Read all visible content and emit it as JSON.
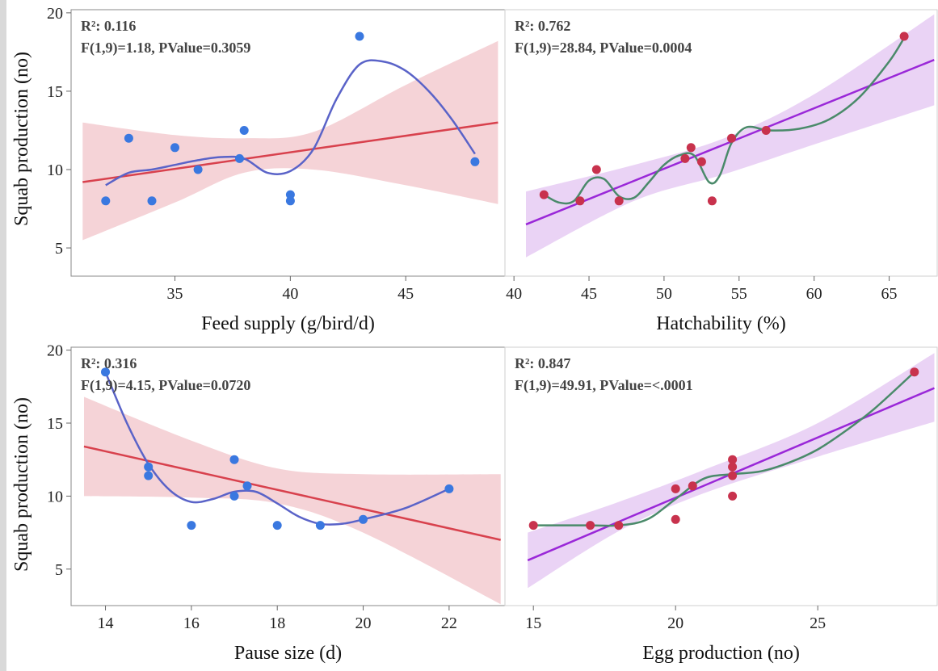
{
  "chart_data": [
    {
      "type": "scatter",
      "title": "",
      "xlabel": "Feed supply (g/bird/d)",
      "ylabel": "Squab production (no)",
      "xlim": [
        30.5,
        49.3
      ],
      "ylim": [
        3.2,
        20.2
      ],
      "x_ticks": [
        35,
        40,
        45
      ],
      "y_ticks": [
        5,
        10,
        15,
        20
      ],
      "stats": [
        "R²: 0.116",
        "F(1,9)=1.18, PValue=0.3059"
      ],
      "point_color": "#3a78e0",
      "fit_color": "#d8414d",
      "band_color": "#f2c4c9",
      "smooth_color": "#5a63c8",
      "points": [
        [
          32,
          8
        ],
        [
          33,
          12
        ],
        [
          34,
          8
        ],
        [
          35,
          11.4
        ],
        [
          36,
          10
        ],
        [
          37.8,
          10.7
        ],
        [
          38,
          12.5
        ],
        [
          40,
          8.4
        ],
        [
          40,
          8
        ],
        [
          43,
          18.5
        ],
        [
          48,
          10.5
        ]
      ],
      "fit_line": [
        [
          31,
          9.2
        ],
        [
          49,
          13.0
        ]
      ],
      "band_upper": [
        [
          31,
          13.0
        ],
        [
          35,
          12.2
        ],
        [
          38,
          12.0
        ],
        [
          41,
          12.4
        ],
        [
          45,
          15.4
        ],
        [
          49,
          18.2
        ]
      ],
      "band_lower": [
        [
          31,
          5.5
        ],
        [
          35,
          7.9
        ],
        [
          38,
          9.8
        ],
        [
          41,
          10.0
        ],
        [
          45,
          9.0
        ],
        [
          49,
          7.8
        ]
      ],
      "smooth": [
        [
          32,
          9
        ],
        [
          33,
          9.8
        ],
        [
          34,
          10
        ],
        [
          35,
          10.3
        ],
        [
          36,
          10.6
        ],
        [
          37,
          10.8
        ],
        [
          38,
          10.7
        ],
        [
          39,
          9.8
        ],
        [
          40,
          9.9
        ],
        [
          41,
          11.3
        ],
        [
          42,
          14.5
        ],
        [
          43,
          16.7
        ],
        [
          44,
          16.9
        ],
        [
          45,
          16.3
        ],
        [
          46,
          15
        ],
        [
          47,
          13.2
        ],
        [
          48,
          11
        ]
      ]
    },
    {
      "type": "scatter",
      "title": "",
      "xlabel": "Hatchability (%)",
      "ylabel": "",
      "xlim": [
        39.4,
        68.2
      ],
      "ylim": [
        3.2,
        20.2
      ],
      "x_ticks": [
        40,
        45,
        50,
        55,
        60,
        65
      ],
      "y_ticks": [
        5,
        10,
        15,
        20
      ],
      "stats": [
        "R²: 0.762",
        "F(1,9)=28.84, PValue=0.0004"
      ],
      "point_color": "#c8324d",
      "fit_color": "#9a28d8",
      "band_color": "#e3c4f2",
      "smooth_color": "#4a8a6a",
      "points": [
        [
          42,
          8.4
        ],
        [
          44.4,
          8
        ],
        [
          45.5,
          10
        ],
        [
          47,
          8
        ],
        [
          51.4,
          10.7
        ],
        [
          51.8,
          11.4
        ],
        [
          52.5,
          10.5
        ],
        [
          53.2,
          8
        ],
        [
          54.5,
          12
        ],
        [
          56.8,
          12.5
        ],
        [
          66,
          18.5
        ]
      ],
      "fit_line": [
        [
          40.8,
          6.5
        ],
        [
          68,
          17.0
        ]
      ],
      "band_upper": [
        [
          40.8,
          8.6
        ],
        [
          48,
          10.3
        ],
        [
          54,
          12.0
        ],
        [
          60,
          14.8
        ],
        [
          68,
          19.9
        ]
      ],
      "band_lower": [
        [
          40.8,
          4.4
        ],
        [
          48,
          8.0
        ],
        [
          54,
          9.7
        ],
        [
          60,
          11.6
        ],
        [
          68,
          14.1
        ]
      ],
      "smooth": [
        [
          42,
          8.4
        ],
        [
          43,
          7.9
        ],
        [
          44,
          8
        ],
        [
          45,
          9.3
        ],
        [
          46,
          9.4
        ],
        [
          47,
          8.3
        ],
        [
          48,
          8.2
        ],
        [
          49,
          9.2
        ],
        [
          50,
          10.3
        ],
        [
          51,
          10.9
        ],
        [
          52,
          10.9
        ],
        [
          53,
          9.2
        ],
        [
          53.7,
          9.6
        ],
        [
          54.5,
          11.7
        ],
        [
          55.5,
          12.7
        ],
        [
          57,
          12.5
        ],
        [
          59,
          12.6
        ],
        [
          61,
          13.2
        ],
        [
          63,
          14.6
        ],
        [
          65,
          16.9
        ],
        [
          66,
          18.4
        ]
      ]
    },
    {
      "type": "scatter",
      "title": "",
      "xlabel": "Pause size (d)",
      "ylabel": "Squab production (no)",
      "xlim": [
        13.2,
        23.3
      ],
      "ylim": [
        2.5,
        20.2
      ],
      "x_ticks": [
        14,
        16,
        18,
        20,
        22
      ],
      "y_ticks": [
        5,
        10,
        15,
        20
      ],
      "stats": [
        "R²: 0.316",
        "F(1,9)=4.15, PValue=0.0720"
      ],
      "point_color": "#3a78e0",
      "fit_color": "#d8414d",
      "band_color": "#f2c4c9",
      "smooth_color": "#5a63c8",
      "points": [
        [
          14,
          18.5
        ],
        [
          15,
          12
        ],
        [
          15,
          11.4
        ],
        [
          16,
          8
        ],
        [
          17,
          12.5
        ],
        [
          17,
          10
        ],
        [
          17.3,
          10.7
        ],
        [
          18,
          8
        ],
        [
          19,
          8
        ],
        [
          20,
          8.4
        ],
        [
          22,
          10.5
        ]
      ],
      "fit_line": [
        [
          13.5,
          13.4
        ],
        [
          23.2,
          7.0
        ]
      ],
      "band_upper": [
        [
          13.5,
          16.8
        ],
        [
          16,
          13.8
        ],
        [
          18,
          11.9
        ],
        [
          20,
          11.5
        ],
        [
          23.2,
          11.5
        ]
      ],
      "band_lower": [
        [
          13.5,
          10.0
        ],
        [
          16,
          9.9
        ],
        [
          18,
          9.5
        ],
        [
          20,
          7.5
        ],
        [
          23.2,
          2.6
        ]
      ],
      "smooth": [
        [
          14,
          18.5
        ],
        [
          14.5,
          15
        ],
        [
          15,
          12.2
        ],
        [
          15.5,
          10.4
        ],
        [
          16,
          9.6
        ],
        [
          16.5,
          9.8
        ],
        [
          17,
          10.3
        ],
        [
          17.5,
          10.3
        ],
        [
          18,
          9.5
        ],
        [
          18.5,
          8.6
        ],
        [
          19,
          8.1
        ],
        [
          19.5,
          8.1
        ],
        [
          20,
          8.4
        ],
        [
          21,
          9.2
        ],
        [
          22,
          10.5
        ]
      ]
    },
    {
      "type": "scatter",
      "title": "",
      "xlabel": "Egg production (no)",
      "ylabel": "",
      "xlim": [
        14,
        29.2
      ],
      "ylim": [
        2.5,
        20.2
      ],
      "x_ticks": [
        15,
        20,
        25
      ],
      "y_ticks": [
        5,
        10,
        15,
        20
      ],
      "stats": [
        "R²: 0.847",
        "F(1,9)=49.91, PValue=<.0001"
      ],
      "point_color": "#c8324d",
      "fit_color": "#9a28d8",
      "band_color": "#e3c4f2",
      "smooth_color": "#4a8a6a",
      "points": [
        [
          15,
          8
        ],
        [
          17,
          8
        ],
        [
          18,
          8
        ],
        [
          20,
          10.5
        ],
        [
          20,
          8.4
        ],
        [
          20.6,
          10.7
        ],
        [
          22,
          12.5
        ],
        [
          22,
          12
        ],
        [
          22,
          11.4
        ],
        [
          22,
          10
        ],
        [
          28.4,
          18.5
        ]
      ],
      "fit_line": [
        [
          14.8,
          5.6
        ],
        [
          29.1,
          17.4
        ]
      ],
      "band_upper": [
        [
          14.8,
          7.5
        ],
        [
          18,
          9.6
        ],
        [
          21,
          11.8
        ],
        [
          25,
          15.0
        ],
        [
          29.1,
          19.8
        ]
      ],
      "band_lower": [
        [
          14.8,
          3.7
        ],
        [
          18,
          7.6
        ],
        [
          21,
          10.2
        ],
        [
          25,
          12.7
        ],
        [
          29.1,
          15.1
        ]
      ],
      "smooth": [
        [
          15,
          8
        ],
        [
          16,
          8
        ],
        [
          17,
          8
        ],
        [
          18,
          8
        ],
        [
          19,
          8.4
        ],
        [
          20,
          9.8
        ],
        [
          21,
          11.2
        ],
        [
          22,
          11.5
        ],
        [
          23,
          11.7
        ],
        [
          24,
          12.3
        ],
        [
          25,
          13.2
        ],
        [
          26,
          14.5
        ],
        [
          27,
          16
        ],
        [
          28.4,
          18.5
        ]
      ]
    }
  ]
}
